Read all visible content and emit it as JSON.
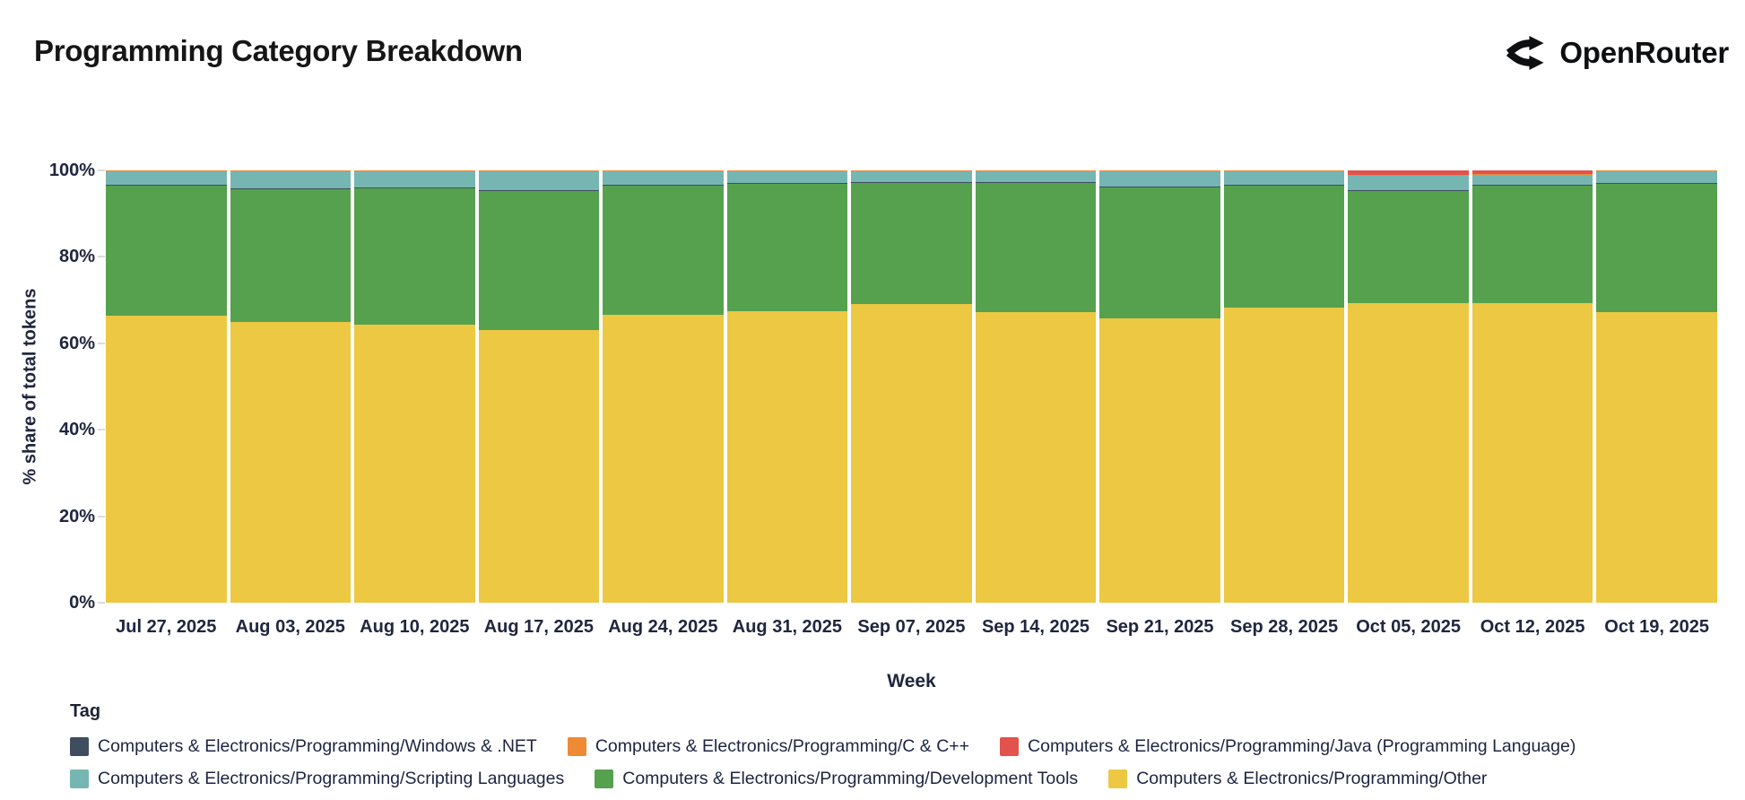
{
  "header": {
    "title": "Programming Category Breakdown",
    "brand": "OpenRouter"
  },
  "chart_data": {
    "type": "bar",
    "stacked": true,
    "normalized_percent": true,
    "title": "Programming Category Breakdown",
    "xlabel": "Week",
    "ylabel": "% share of total tokens",
    "ylim": [
      0,
      100
    ],
    "yticks": [
      "0%",
      "20%",
      "40%",
      "60%",
      "80%",
      "100%"
    ],
    "grid": false,
    "legend_position": "bottom",
    "categories": [
      "Jul 27, 2025",
      "Aug 03, 2025",
      "Aug 10, 2025",
      "Aug 17, 2025",
      "Aug 24, 2025",
      "Aug 31, 2025",
      "Sep 07, 2025",
      "Sep 14, 2025",
      "Sep 21, 2025",
      "Sep 28, 2025",
      "Oct 05, 2025",
      "Oct 12, 2025",
      "Oct 19, 2025"
    ],
    "series": [
      {
        "id": "other",
        "name": "Computers & Electronics/Programming/Other",
        "color": "#ecc843",
        "values": [
          66.3,
          65.0,
          64.3,
          63.1,
          66.6,
          67.4,
          69.1,
          67.3,
          65.7,
          68.3,
          69.2,
          69.4,
          67.3
        ]
      },
      {
        "id": "development-tools",
        "name": "Computers & Electronics/Programming/Development Tools",
        "color": "#55a14e",
        "values": [
          30.1,
          30.7,
          31.6,
          32.2,
          29.8,
          29.5,
          28.0,
          29.9,
          30.3,
          28.1,
          26.0,
          27.0,
          29.6
        ]
      },
      {
        "id": "windows-net",
        "name": "Computers & Electronics/Programming/Windows & .NET",
        "color": "#3e4e60",
        "pattern": "dots",
        "values": [
          0.2,
          0.2,
          0.2,
          0.2,
          0.2,
          0.2,
          0.2,
          0.2,
          0.2,
          0.2,
          0.2,
          0.2,
          0.2
        ]
      },
      {
        "id": "scripting-languages",
        "name": "Computers & Electronics/Programming/Scripting Languages",
        "color": "#75b6b2",
        "values": [
          3.1,
          3.8,
          3.6,
          4.2,
          3.1,
          2.6,
          2.4,
          2.3,
          3.5,
          3.1,
          3.3,
          2.3,
          2.6
        ]
      },
      {
        "id": "c-cpp",
        "name": "Computers & Electronics/Programming/C & C++",
        "color": "#ee8a33",
        "values": [
          0.3,
          0.3,
          0.3,
          0.3,
          0.3,
          0.3,
          0.3,
          0.3,
          0.3,
          0.3,
          0.3,
          0.3,
          0.3
        ]
      },
      {
        "id": "java",
        "name": "Computers & Electronics/Programming/Java (Programming Language)",
        "color": "#e2534d",
        "values": [
          0,
          0,
          0,
          0,
          0,
          0,
          0,
          0,
          0,
          0,
          1.0,
          0.8,
          0
        ]
      }
    ]
  },
  "legend": {
    "title": "Tag",
    "rows": [
      [
        "windows-net",
        "c-cpp",
        "java"
      ],
      [
        "scripting-languages",
        "development-tools",
        "other"
      ]
    ]
  }
}
